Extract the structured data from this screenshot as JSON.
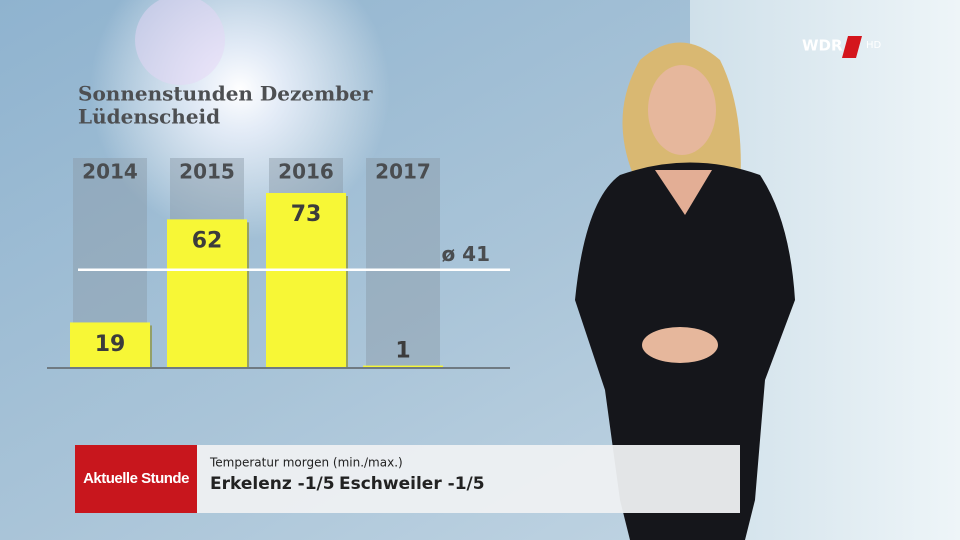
{
  "logo": {
    "brand": "WDR",
    "quality": "HD"
  },
  "chart_data": {
    "type": "bar",
    "title": "Sonnenstunden Dezember",
    "subtitle": "Lüdenscheid",
    "categories": [
      "2014",
      "2015",
      "2016",
      "2017"
    ],
    "values": [
      19,
      62,
      73,
      1
    ],
    "color": "#f7f736",
    "reference_line": {
      "value": 41,
      "label": "ø 41"
    }
  },
  "lower_third": {
    "show": "Aktuelle Stunde",
    "caption": "Temperatur morgen (min./max.)",
    "entries": [
      "Erkelenz -1/5",
      "Eschweiler -1/5"
    ]
  }
}
